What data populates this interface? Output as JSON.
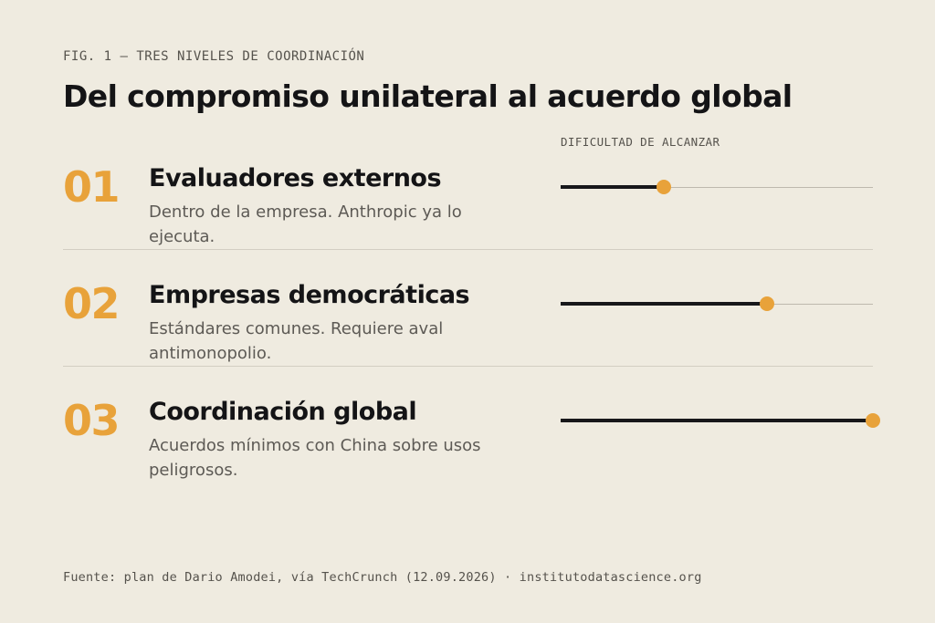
{
  "figure": {
    "label": "FIG. 1 — TRES NIVELES DE COORDINACIÓN",
    "title": "Del compromiso unilateral al acuerdo global",
    "difficulty_label": "DIFICULTAD DE ALCANZAR"
  },
  "colors": {
    "accent": "#e8a23a",
    "ink": "#17171a",
    "background": "#efebe0"
  },
  "levels": [
    {
      "number": "01",
      "title": "Evaluadores externos",
      "description": "Dentro de la empresa. Anthropic ya lo ejecuta.",
      "difficulty": 0.33
    },
    {
      "number": "02",
      "title": "Empresas democráticas",
      "description": "Estándares comunes. Requiere aval antimonopolio.",
      "difficulty": 0.66
    },
    {
      "number": "03",
      "title": "Coordinación global",
      "description": "Acuerdos mínimos con China sobre usos peligrosos.",
      "difficulty": 1.0
    }
  ],
  "footer": {
    "source": "Fuente: plan de Dario Amodei, vía TechCrunch (12.09.2026) · institutodatascience.org"
  }
}
